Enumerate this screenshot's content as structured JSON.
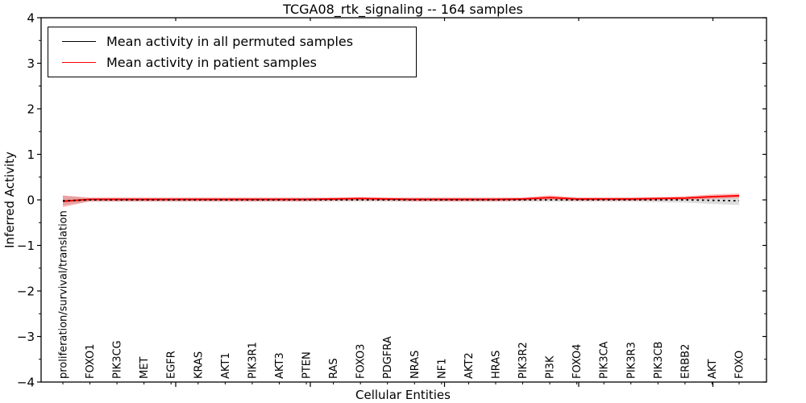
{
  "title": "TCGA08_rtk_signaling -- 164 samples",
  "legend": {
    "items": [
      {
        "label": "Mean activity in all permuted samples",
        "color": "#000000"
      },
      {
        "label": "Mean activity in patient samples",
        "color": "#ff0000"
      }
    ]
  },
  "chart_data": {
    "type": "line",
    "title": "TCGA08_rtk_signaling -- 164 samples",
    "xlabel": "Cellular Entities",
    "ylabel": "Inferred Activity",
    "ylim": [
      -4,
      4
    ],
    "yticks": [
      -4,
      -3,
      -2,
      -1,
      0,
      1,
      2,
      3,
      4
    ],
    "ytick_labels": [
      "−4",
      "−3",
      "−2",
      "−1",
      "0",
      "1",
      "2",
      "3",
      "4"
    ],
    "grid": false,
    "legend_position": "upper left",
    "categories": [
      "proliferation/survival/translation",
      "FOXO1",
      "PIK3CG",
      "MET",
      "EGFR",
      "KRAS",
      "AKT1",
      "PIK3R1",
      "AKT3",
      "PTEN",
      "RAS",
      "FOXO3",
      "PDGFRA",
      "NRAS",
      "NF1",
      "AKT2",
      "HRAS",
      "PIK3R2",
      "PI3K",
      "FOXO4",
      "PIK3CA",
      "PIK3R3",
      "PIK3CB",
      "ERBB2",
      "AKT",
      "FOXO"
    ],
    "series": [
      {
        "name": "Mean activity in all permuted samples",
        "color": "#000000",
        "style": "dotted",
        "values": [
          -0.02,
          0,
          0,
          0,
          0,
          0,
          0,
          0,
          0,
          0,
          0,
          0,
          0,
          0,
          0,
          0,
          0,
          0,
          0,
          0,
          0,
          0,
          0,
          0,
          -0.01,
          -0.02
        ]
      },
      {
        "name": "Mean activity in patient samples",
        "color": "#ff0000",
        "style": "solid",
        "values": [
          -0.03,
          0.01,
          0.01,
          0.01,
          0.01,
          0.01,
          0.01,
          0.01,
          0.01,
          0.01,
          0.02,
          0.03,
          0.02,
          0.01,
          0.01,
          0.01,
          0.01,
          0.02,
          0.05,
          0.02,
          0.02,
          0.02,
          0.03,
          0.04,
          0.07,
          0.09
        ]
      }
    ],
    "bands": [
      {
        "name": "permuted-samples-range",
        "color": "#aaaaaa",
        "opacity": 0.4,
        "upper": [
          0.09,
          0.04,
          0.04,
          0.04,
          0.04,
          0.04,
          0.04,
          0.04,
          0.04,
          0.04,
          0.04,
          0.04,
          0.04,
          0.04,
          0.04,
          0.04,
          0.04,
          0.04,
          0.04,
          0.04,
          0.04,
          0.04,
          0.04,
          0.04,
          0.05,
          0.06
        ],
        "lower": [
          -0.12,
          -0.04,
          -0.04,
          -0.04,
          -0.04,
          -0.04,
          -0.04,
          -0.04,
          -0.04,
          -0.04,
          -0.04,
          -0.04,
          -0.04,
          -0.04,
          -0.04,
          -0.04,
          -0.04,
          -0.04,
          -0.04,
          -0.04,
          -0.04,
          -0.04,
          -0.05,
          -0.06,
          -0.09,
          -0.11
        ]
      },
      {
        "name": "patient-samples-range",
        "color": "#ff0000",
        "opacity": 0.27,
        "upper": [
          0.1,
          0.05,
          0.05,
          0.05,
          0.05,
          0.05,
          0.05,
          0.05,
          0.05,
          0.05,
          0.05,
          0.06,
          0.05,
          0.05,
          0.05,
          0.05,
          0.05,
          0.05,
          0.1,
          0.05,
          0.05,
          0.05,
          0.06,
          0.08,
          0.12,
          0.14
        ],
        "lower": [
          -0.16,
          -0.03,
          -0.03,
          -0.03,
          -0.03,
          -0.03,
          -0.03,
          -0.03,
          -0.03,
          -0.03,
          -0.02,
          -0.01,
          -0.02,
          -0.03,
          -0.03,
          -0.03,
          -0.03,
          -0.02,
          0.0,
          -0.02,
          -0.02,
          -0.02,
          -0.01,
          0.0,
          0.02,
          0.04
        ]
      }
    ]
  }
}
